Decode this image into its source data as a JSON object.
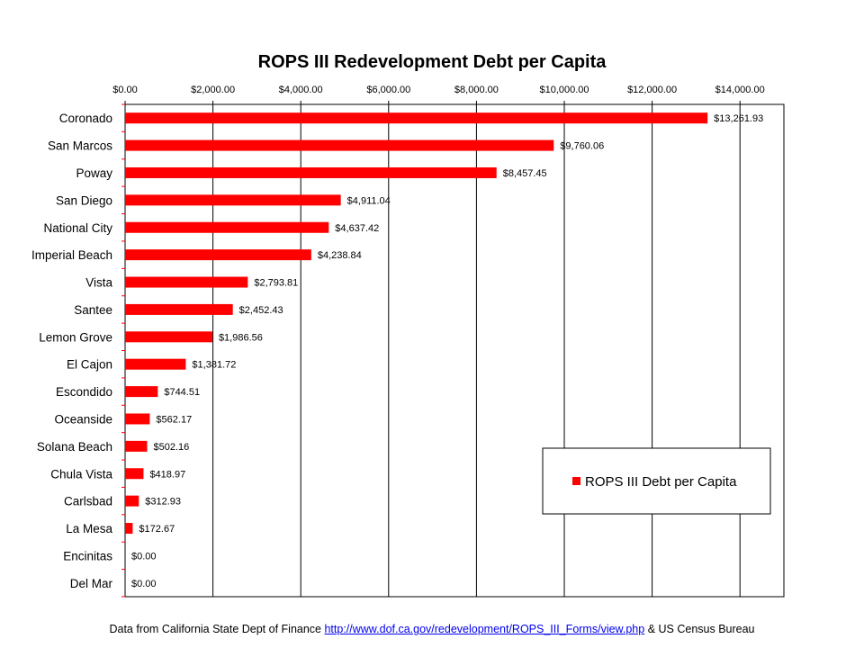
{
  "chart_data": {
    "type": "bar",
    "orientation": "horizontal",
    "title": "ROPS III Redevelopment Debt per Capita",
    "categories": [
      "Coronado",
      "San Marcos",
      "Poway",
      "San Diego",
      "National City",
      "Imperial Beach",
      "Vista",
      "Santee",
      "Lemon Grove",
      "El Cajon",
      "Escondido",
      "Oceanside",
      "Solana Beach",
      "Chula Vista",
      "Carlsbad",
      "La Mesa",
      "Encinitas",
      "Del Mar"
    ],
    "series": [
      {
        "name": "ROPS III Debt per Capita",
        "color": "#ff0000",
        "values": [
          13261.93,
          9760.06,
          8457.45,
          4911.04,
          4637.42,
          4238.84,
          2793.81,
          2452.43,
          1986.56,
          1381.72,
          744.51,
          562.17,
          502.16,
          418.97,
          312.93,
          172.67,
          0.0,
          0.0
        ],
        "value_labels": [
          "$13,261.93",
          "$9,760.06",
          "$8,457.45",
          "$4,911.04",
          "$4,637.42",
          "$4,238.84",
          "$2,793.81",
          "$2,452.43",
          "$1,986.56",
          "$1,381.72",
          "$744.51",
          "$562.17",
          "$502.16",
          "$418.97",
          "$312.93",
          "$172.67",
          "$0.00",
          "$0.00"
        ]
      }
    ],
    "xlim": [
      0,
      15000
    ],
    "xticks": [
      0,
      2000,
      4000,
      6000,
      8000,
      10000,
      12000,
      14000
    ],
    "xtick_labels": [
      "$0.00",
      "$2,000.00",
      "$4,000.00",
      "$6,000.00",
      "$8,000.00",
      "$10,000.00",
      "$12,000.00",
      "$14,000.00"
    ],
    "x_axis_position": "top",
    "grid": "vertical",
    "legend_position": "bottom-right"
  },
  "footer": {
    "prefix": "Data from California State Dept of Finance ",
    "link_text": "http://www.dof.ca.gov/redevelopment/ROPS_III_Forms/view.php",
    "suffix": " & US Census Bureau"
  }
}
